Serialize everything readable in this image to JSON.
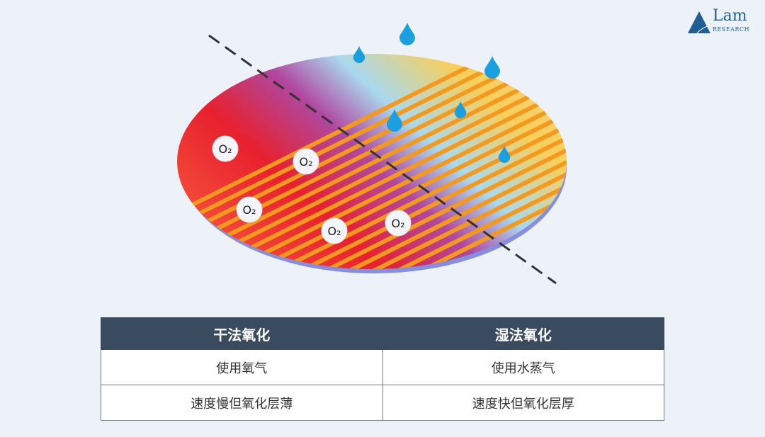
{
  "logo": {
    "name": "Lam",
    "sub": "RESEARCH",
    "color": "#1f5f95"
  },
  "diagram": {
    "molecule_label": "O₂",
    "molecule_count": 5,
    "droplet_count": 6,
    "droplet_color": "#1aa0e0"
  },
  "table": {
    "headers": [
      "干法氧化",
      "湿法氧化"
    ],
    "rows": [
      [
        "使用氧气",
        "使用水蒸气"
      ],
      [
        "速度慢但氧化层薄",
        "速度快但氧化层厚"
      ]
    ],
    "header_color": "#3a4a5f"
  }
}
